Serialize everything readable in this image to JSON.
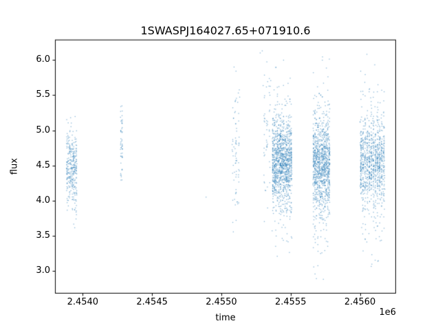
{
  "figure": {
    "background": "#ffffff",
    "frame_color": "#000000",
    "text_color": "#000000"
  },
  "chart_data": {
    "type": "scatter",
    "title": "1SWASPJ164027.65+071910.6",
    "xlabel": "time",
    "ylabel": "flux",
    "x_offset_label": "1e6",
    "xlim": [
      2453800,
      2456260
    ],
    "ylim": [
      2.68,
      6.29
    ],
    "grid": false,
    "legend": "none",
    "xticks": [
      {
        "value": 2454000,
        "label": "2.4540"
      },
      {
        "value": 2454500,
        "label": "2.4545"
      },
      {
        "value": 2455000,
        "label": "2.4550"
      },
      {
        "value": 2455500,
        "label": "2.4555"
      },
      {
        "value": 2456000,
        "label": "2.4560"
      }
    ],
    "yticks": [
      {
        "value": 3.0,
        "label": "3.0"
      },
      {
        "value": 3.5,
        "label": "3.5"
      },
      {
        "value": 4.0,
        "label": "4.0"
      },
      {
        "value": 4.5,
        "label": "4.5"
      },
      {
        "value": 5.0,
        "label": "5.0"
      },
      {
        "value": 5.5,
        "label": "5.5"
      },
      {
        "value": 6.0,
        "label": "6.0"
      }
    ],
    "marker_color": "#1f77b4",
    "marker_opacity": 0.55,
    "marker_radius": 0.75,
    "clusters": [
      {
        "t_center": 2453920,
        "t_halfwidth": 38,
        "n_points": 330,
        "n_nights": 8,
        "flux_mean": 4.45,
        "flux_std_core": 0.27,
        "flux_std_tail": 0.5,
        "tail_frac": 0.12,
        "flux_min": 3.55,
        "flux_max": 5.4
      },
      {
        "t_center": 2454280,
        "t_halfwidth": 10,
        "n_points": 55,
        "n_nights": 2,
        "flux_mean": 4.85,
        "flux_std_core": 0.3,
        "flux_std_tail": 0.45,
        "tail_frac": 0.2,
        "flux_min": 4.2,
        "flux_max": 5.5
      },
      {
        "t_center": 2455105,
        "t_halfwidth": 30,
        "n_points": 75,
        "n_nights": 3,
        "flux_mean": 4.6,
        "flux_std_core": 0.45,
        "flux_std_tail": 0.8,
        "tail_frac": 0.25,
        "flux_min": 3.35,
        "flux_max": 5.95
      },
      {
        "t_center": 2455330,
        "t_halfwidth": 28,
        "n_points": 55,
        "n_nights": 3,
        "flux_mean": 4.9,
        "flux_std_core": 0.55,
        "flux_std_tail": 0.9,
        "tail_frac": 0.3,
        "flux_min": 3.6,
        "flux_max": 6.15
      },
      {
        "t_center": 2455438,
        "t_halfwidth": 72,
        "n_points": 1250,
        "n_nights": 13,
        "flux_mean": 4.55,
        "flux_std_core": 0.3,
        "flux_std_tail": 0.62,
        "tail_frac": 0.18,
        "flux_min": 3.2,
        "flux_max": 6.12
      },
      {
        "t_center": 2455722,
        "t_halfwidth": 62,
        "n_points": 1100,
        "n_nights": 12,
        "flux_mean": 4.5,
        "flux_std_core": 0.33,
        "flux_std_tail": 0.7,
        "tail_frac": 0.2,
        "flux_min": 2.88,
        "flux_max": 6.2
      },
      {
        "t_center": 2456090,
        "t_halfwidth": 90,
        "n_points": 1000,
        "n_nights": 12,
        "flux_mean": 4.55,
        "flux_std_core": 0.3,
        "flux_std_tail": 0.65,
        "tail_frac": 0.18,
        "flux_min": 2.87,
        "flux_max": 6.1
      }
    ],
    "stray_points": [
      {
        "t": 2454890,
        "flux": 4.05
      },
      {
        "t": 2455280,
        "flux": 6.1
      },
      {
        "t": 2455295,
        "flux": 6.13
      }
    ]
  }
}
